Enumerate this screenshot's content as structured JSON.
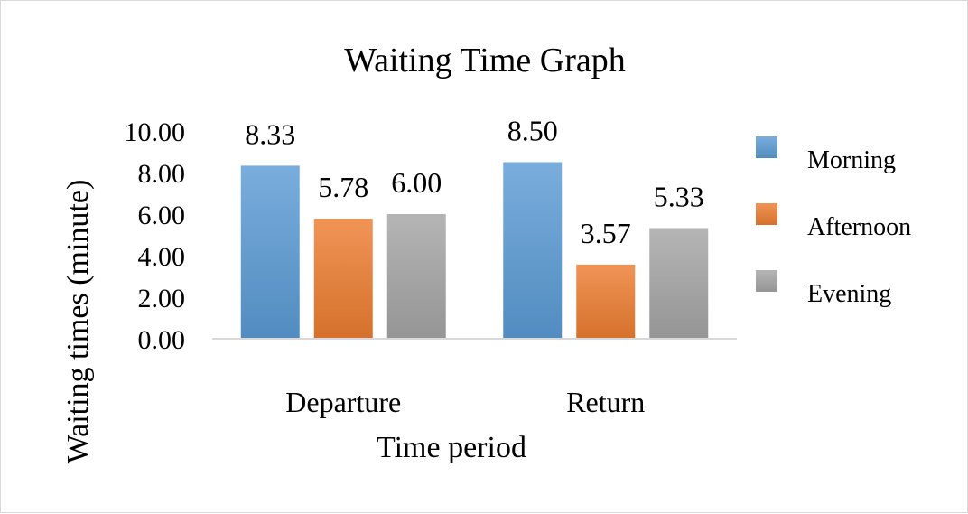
{
  "chart_data": {
    "type": "bar",
    "title": "Waiting Time Graph",
    "xlabel": "Time period",
    "ylabel": "Waiting times (minute)",
    "categories": [
      "Departure",
      "Return"
    ],
    "series": [
      {
        "name": "Morning",
        "values": [
          8.33,
          8.5
        ],
        "labels": [
          "8.33",
          "8.50"
        ],
        "color": "#5b9bd5"
      },
      {
        "name": "Afternoon",
        "values": [
          5.78,
          3.57
        ],
        "labels": [
          "5.78",
          "3.57"
        ],
        "color": "#ed7d31"
      },
      {
        "name": "Evening",
        "values": [
          6.0,
          5.33
        ],
        "labels": [
          "6.00",
          "5.33"
        ],
        "color": "#a5a5a5"
      }
    ],
    "ylim": [
      0,
      10
    ],
    "yticks": [
      "0.00",
      "2.00",
      "4.00",
      "6.00",
      "8.00",
      "10.00"
    ],
    "grid": false,
    "legend_position": "right"
  }
}
